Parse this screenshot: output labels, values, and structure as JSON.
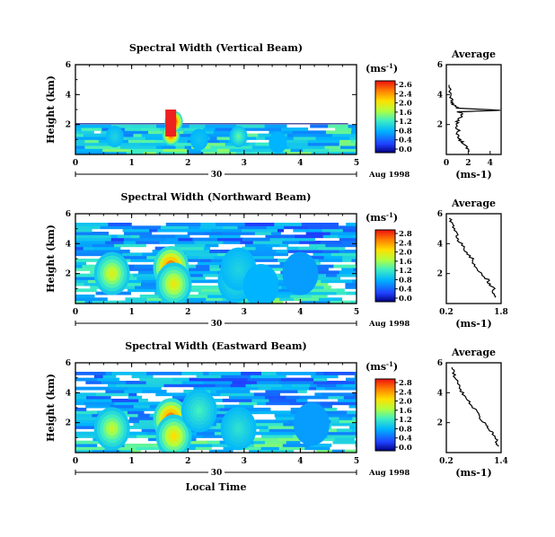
{
  "chart_data": [
    {
      "type": "heatmap",
      "title": "Spectral Width (Vertical Beam)",
      "ylabel": "Height (km)",
      "xlabel": "",
      "xlim": [
        0,
        5
      ],
      "ylim": [
        0,
        6
      ],
      "xticks": [
        "0",
        "1",
        "2",
        "3",
        "4",
        "5"
      ],
      "yticks": [
        "2",
        "4",
        "6"
      ],
      "date_axis": {
        "day": "30",
        "label": "Aug 1998"
      },
      "colorbar": {
        "unit": "(ms",
        "unit_sup": "-1",
        "unit_close": ")",
        "labels": [
          "2.6",
          "2.4",
          "2.0",
          "1.6",
          "1.2",
          "0.8",
          "0.4",
          "0.0"
        ]
      },
      "blobs": [
        {
          "x": 0.7,
          "y": 1.2,
          "value": 1.0
        },
        {
          "x": 1.7,
          "y": 1.3,
          "value": 2.6
        },
        {
          "x": 1.75,
          "y": 2.2,
          "value": 2.8
        },
        {
          "x": 2.2,
          "y": 1.0,
          "value": 0.9
        },
        {
          "x": 2.9,
          "y": 1.2,
          "value": 1.3
        },
        {
          "x": 3.6,
          "y": 0.8,
          "value": 0.8
        }
      ]
    },
    {
      "type": "line",
      "title": "Average",
      "xlabel": "(ms-1)",
      "ylabel": "",
      "xlim": [
        0,
        5
      ],
      "ylim": [
        0,
        6
      ],
      "xticks": [
        "0",
        "2",
        "4"
      ],
      "yticks": [
        "2",
        "4",
        "6"
      ],
      "series": [
        {
          "x": [
            2.0,
            1.8,
            1.5,
            1.2,
            1.0,
            1.1,
            0.9,
            1.0,
            1.3,
            1.5,
            1.1,
            4.9,
            1.0,
            0.7,
            0.5,
            0.4,
            0.3,
            0.2
          ],
          "y": [
            0.2,
            0.5,
            0.8,
            1.0,
            1.3,
            1.6,
            1.9,
            2.2,
            2.5,
            2.7,
            2.85,
            2.95,
            3.1,
            3.3,
            3.5,
            3.8,
            4.2,
            4.8
          ]
        }
      ]
    },
    {
      "type": "heatmap",
      "title": "Spectral Width (Northward Beam)",
      "ylabel": "Height (km)",
      "xlabel": "",
      "xlim": [
        0,
        5
      ],
      "ylim": [
        0,
        6
      ],
      "xticks": [
        "0",
        "1",
        "2",
        "3",
        "4",
        "5"
      ],
      "yticks": [
        "2",
        "4",
        "6"
      ],
      "date_axis": {
        "day": "30",
        "label": "Aug 1998"
      },
      "colorbar": {
        "unit": "(ms",
        "unit_sup": "-1",
        "unit_close": ")",
        "labels": [
          "2.8",
          "2.4",
          "2.0",
          "1.6",
          "1.2",
          "0.8",
          "0.4",
          "0.0"
        ]
      },
      "blobs": [
        {
          "x": 0.65,
          "y": 2.0,
          "value": 1.7
        },
        {
          "x": 1.7,
          "y": 2.4,
          "value": 2.6
        },
        {
          "x": 1.75,
          "y": 1.3,
          "value": 1.8
        },
        {
          "x": 2.85,
          "y": 1.5,
          "value": 1.1
        },
        {
          "x": 2.9,
          "y": 2.3,
          "value": 1.0
        },
        {
          "x": 4.0,
          "y": 2.0,
          "value": 0.7
        },
        {
          "x": 3.3,
          "y": 1.2,
          "value": 0.8
        }
      ]
    },
    {
      "type": "line",
      "title": "Average",
      "xlabel": "(ms-1)",
      "ylabel": "",
      "xlim": [
        0.2,
        1.8
      ],
      "ylim": [
        0,
        6
      ],
      "xticks": [
        "0.2",
        "1.8"
      ],
      "yticks": [
        "2",
        "4",
        "6"
      ],
      "series": [
        {
          "x": [
            1.65,
            1.55,
            1.6,
            1.45,
            1.4,
            1.25,
            1.15,
            1.0,
            0.95,
            0.8,
            0.7,
            0.55,
            0.5,
            0.45,
            0.35,
            0.3
          ],
          "y": [
            0.4,
            0.7,
            1.0,
            1.3,
            1.6,
            1.9,
            2.2,
            2.6,
            3.0,
            3.4,
            3.8,
            4.2,
            4.6,
            5.0,
            5.4,
            5.8
          ]
        }
      ]
    },
    {
      "type": "heatmap",
      "title": "Spectral Width (Eastward Beam)",
      "ylabel": "Height (km)",
      "xlabel": "Local Time",
      "xlim": [
        0,
        5
      ],
      "ylim": [
        0,
        6
      ],
      "xticks": [
        "0",
        "1",
        "2",
        "3",
        "4",
        "5"
      ],
      "yticks": [
        "2",
        "4",
        "6"
      ],
      "date_axis": {
        "day": "30",
        "label": "Aug 1998"
      },
      "colorbar": {
        "unit": "(ms",
        "unit_sup": "-1",
        "unit_close": ")",
        "labels": [
          "2.8",
          "2.4",
          "2.0",
          "1.6",
          "1.2",
          "0.8",
          "0.4",
          "0.0"
        ]
      },
      "blobs": [
        {
          "x": 0.65,
          "y": 1.6,
          "value": 1.6
        },
        {
          "x": 1.7,
          "y": 2.2,
          "value": 2.6
        },
        {
          "x": 1.75,
          "y": 1.1,
          "value": 1.9
        },
        {
          "x": 2.9,
          "y": 1.6,
          "value": 1.1
        },
        {
          "x": 2.2,
          "y": 2.8,
          "value": 1.2
        },
        {
          "x": 4.2,
          "y": 1.9,
          "value": 0.7
        }
      ]
    },
    {
      "type": "line",
      "title": "Average",
      "xlabel": "(ms-1)",
      "ylabel": "",
      "xlim": [
        0.2,
        1.4
      ],
      "ylim": [
        0,
        6
      ],
      "xticks": [
        "0.2",
        "1.4"
      ],
      "yticks": [
        "2",
        "4",
        "6"
      ],
      "series": [
        {
          "x": [
            1.35,
            1.3,
            1.28,
            1.2,
            1.15,
            1.05,
            0.95,
            0.9,
            0.8,
            0.7,
            0.6,
            0.5,
            0.45,
            0.4,
            0.35,
            0.3
          ],
          "y": [
            0.4,
            0.7,
            1.0,
            1.3,
            1.6,
            1.9,
            2.2,
            2.6,
            3.0,
            3.4,
            3.8,
            4.2,
            4.6,
            5.0,
            5.4,
            5.8
          ]
        }
      ]
    }
  ]
}
